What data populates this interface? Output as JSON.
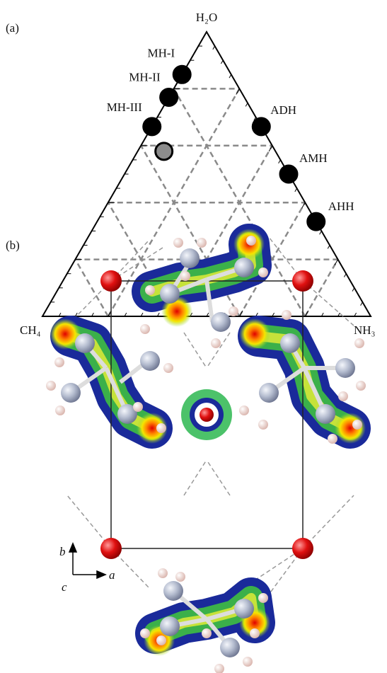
{
  "panel_a": {
    "label": "(a)",
    "vertices": {
      "top": "H₂O",
      "left": "CH₄",
      "right": "NH₃"
    },
    "points": [
      {
        "label": "MH-I",
        "h2o": 0.85,
        "nh3": 0,
        "ch4": 0.15
      },
      {
        "label": "MH-II",
        "h2o": 0.77,
        "nh3": 0,
        "ch4": 0.23
      },
      {
        "label": "MH-III",
        "h2o": 0.667,
        "nh3": 0,
        "ch4": 0.333
      },
      {
        "h2o": 0.58,
        "nh3": 0.08,
        "ch4": 0.34
      },
      {
        "label": "ADH",
        "h2o": 0.667,
        "nh3": 0.333,
        "ch4": 0
      },
      {
        "label": "AMH",
        "h2o": 0.5,
        "nh3": 0.5,
        "ch4": 0
      },
      {
        "label": "AHH",
        "h2o": 0.333,
        "nh3": 0.667,
        "ch4": 0
      }
    ]
  },
  "panel_b": {
    "label": "(b)",
    "axes": {
      "b": "b",
      "a": "a",
      "c": "c"
    }
  }
}
